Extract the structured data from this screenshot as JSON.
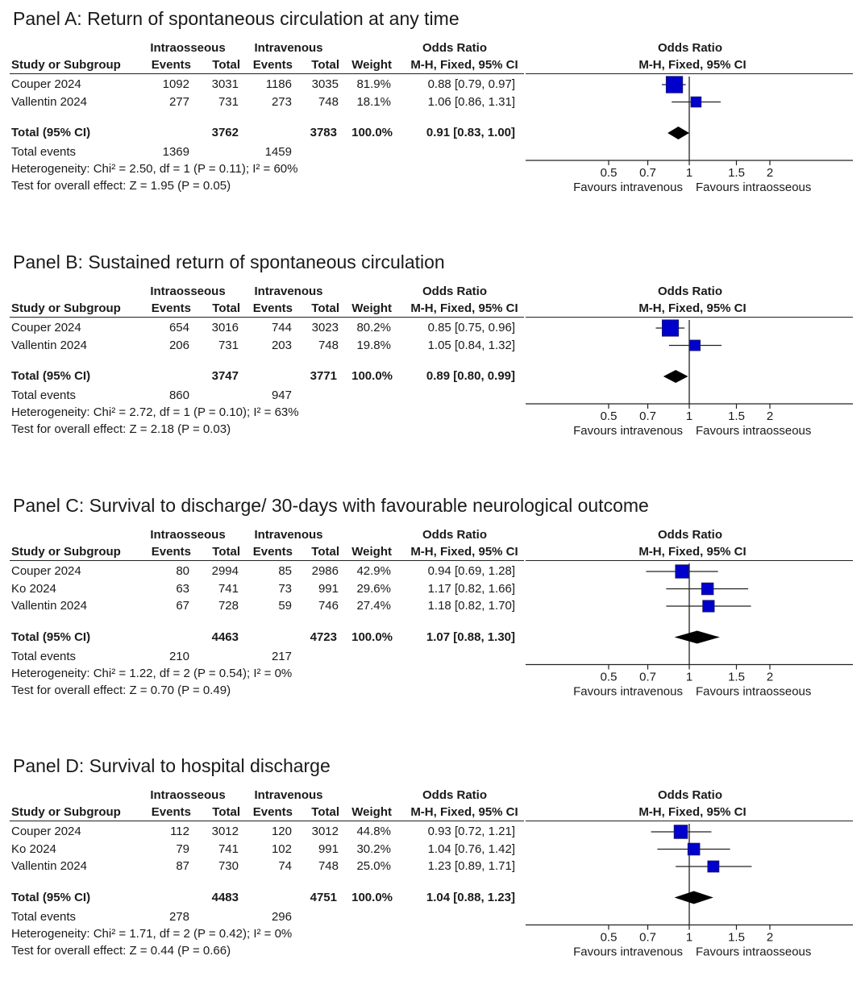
{
  "headers": {
    "group1": "Intraosseous",
    "group2": "Intravenous",
    "study": "Study or Subgroup",
    "events": "Events",
    "total": "Total",
    "weight": "Weight",
    "or_title": "Odds Ratio",
    "or_method": "M-H, Fixed, 95% CI",
    "plot_title": "Odds Ratio",
    "plot_method": "M-H, Fixed, 95% CI"
  },
  "axis": {
    "ticks": [
      0.5,
      0.7,
      1,
      1.5,
      2
    ],
    "tick_labels": [
      "0.5",
      "0.7",
      "1",
      "1.5",
      "2"
    ],
    "favours_left": "Favours intravenous",
    "favours_right": "Favours intraosseous"
  },
  "colors": {
    "square": "#0000cc",
    "diamond": "#000000"
  },
  "panels": [
    {
      "title": "Panel A: Return of spontaneous circulation at any time",
      "studies": [
        {
          "name": "Couper 2024",
          "io_events": "1092",
          "io_total": "3031",
          "iv_events": "1186",
          "iv_total": "3035",
          "weight": "81.9%",
          "ci_text": "0.88 [0.79, 0.97]"
        },
        {
          "name": "Vallentin 2024",
          "io_events": "277",
          "io_total": "731",
          "iv_events": "273",
          "iv_total": "748",
          "weight": "18.1%",
          "ci_text": "1.06 [0.86, 1.31]"
        }
      ],
      "total": {
        "label": "Total (95% CI)",
        "io_total": "3762",
        "iv_total": "3783",
        "weight": "100.0%",
        "ci_text": "0.91 [0.83, 1.00]"
      },
      "total_events": {
        "label": "Total events",
        "io": "1369",
        "iv": "1459"
      },
      "heterogeneity": "Heterogeneity: Chi² = 2.50, df = 1 (P = 0.11); I² = 60%",
      "overall": "Test for overall effect: Z = 1.95 (P = 0.05)"
    },
    {
      "title": "Panel B: Sustained return of spontaneous circulation",
      "studies": [
        {
          "name": "Couper 2024",
          "io_events": "654",
          "io_total": "3016",
          "iv_events": "744",
          "iv_total": "3023",
          "weight": "80.2%",
          "ci_text": "0.85 [0.75, 0.96]"
        },
        {
          "name": "Vallentin 2024",
          "io_events": "206",
          "io_total": "731",
          "iv_events": "203",
          "iv_total": "748",
          "weight": "19.8%",
          "ci_text": "1.05 [0.84, 1.32]"
        }
      ],
      "total": {
        "label": "Total (95% CI)",
        "io_total": "3747",
        "iv_total": "3771",
        "weight": "100.0%",
        "ci_text": "0.89 [0.80, 0.99]"
      },
      "total_events": {
        "label": "Total events",
        "io": "860",
        "iv": "947"
      },
      "heterogeneity": "Heterogeneity: Chi² = 2.72, df = 1 (P = 0.10); I² = 63%",
      "overall": "Test for overall effect: Z = 2.18 (P = 0.03)"
    },
    {
      "title": "Panel C: Survival to discharge/ 30-days with favourable neurological outcome",
      "studies": [
        {
          "name": "Couper 2024",
          "io_events": "80",
          "io_total": "2994",
          "iv_events": "85",
          "iv_total": "2986",
          "weight": "42.9%",
          "ci_text": "0.94 [0.69, 1.28]"
        },
        {
          "name": "Ko 2024",
          "io_events": "63",
          "io_total": "741",
          "iv_events": "73",
          "iv_total": "991",
          "weight": "29.6%",
          "ci_text": "1.17 [0.82, 1.66]"
        },
        {
          "name": "Vallentin 2024",
          "io_events": "67",
          "io_total": "728",
          "iv_events": "59",
          "iv_total": "746",
          "weight": "27.4%",
          "ci_text": "1.18 [0.82, 1.70]"
        }
      ],
      "total": {
        "label": "Total (95% CI)",
        "io_total": "4463",
        "iv_total": "4723",
        "weight": "100.0%",
        "ci_text": "1.07 [0.88, 1.30]"
      },
      "total_events": {
        "label": "Total events",
        "io": "210",
        "iv": "217"
      },
      "heterogeneity": "Heterogeneity: Chi² = 1.22, df = 2 (P = 0.54); I² = 0%",
      "overall": "Test for overall effect: Z = 0.70 (P = 0.49)"
    },
    {
      "title": "Panel D: Survival to hospital discharge",
      "studies": [
        {
          "name": "Couper 2024",
          "io_events": "112",
          "io_total": "3012",
          "iv_events": "120",
          "iv_total": "3012",
          "weight": "44.8%",
          "ci_text": "0.93 [0.72, 1.21]"
        },
        {
          "name": "Ko 2024",
          "io_events": "79",
          "io_total": "741",
          "iv_events": "102",
          "iv_total": "991",
          "weight": "30.2%",
          "ci_text": "1.04 [0.76, 1.42]"
        },
        {
          "name": "Vallentin 2024",
          "io_events": "87",
          "io_total": "730",
          "iv_events": "74",
          "iv_total": "748",
          "weight": "25.0%",
          "ci_text": "1.23 [0.89, 1.71]"
        }
      ],
      "total": {
        "label": "Total (95% CI)",
        "io_total": "4483",
        "iv_total": "4751",
        "weight": "100.0%",
        "ci_text": "1.04 [0.88, 1.23]"
      },
      "total_events": {
        "label": "Total events",
        "io": "278",
        "iv": "296"
      },
      "heterogeneity": "Heterogeneity: Chi² = 1.71, df = 2 (P = 0.42); I² = 0%",
      "overall": "Test for overall effect: Z = 0.44 (P = 0.66)"
    }
  ],
  "chart_data": [
    {
      "type": "forest",
      "title": "Panel A: Return of spontaneous circulation at any time",
      "xscale": "log",
      "xlim": [
        0.5,
        2
      ],
      "xticks": [
        0.5,
        0.7,
        1,
        1.5,
        2
      ],
      "series": [
        {
          "name": "Couper 2024",
          "or": 0.88,
          "lo": 0.79,
          "hi": 0.97,
          "weight": 81.9
        },
        {
          "name": "Vallentin 2024",
          "or": 1.06,
          "lo": 0.86,
          "hi": 1.31,
          "weight": 18.1
        }
      ],
      "pooled": {
        "or": 0.91,
        "lo": 0.83,
        "hi": 1.0
      }
    },
    {
      "type": "forest",
      "title": "Panel B: Sustained return of spontaneous circulation",
      "xscale": "log",
      "xlim": [
        0.5,
        2
      ],
      "xticks": [
        0.5,
        0.7,
        1,
        1.5,
        2
      ],
      "series": [
        {
          "name": "Couper 2024",
          "or": 0.85,
          "lo": 0.75,
          "hi": 0.96,
          "weight": 80.2
        },
        {
          "name": "Vallentin 2024",
          "or": 1.05,
          "lo": 0.84,
          "hi": 1.32,
          "weight": 19.8
        }
      ],
      "pooled": {
        "or": 0.89,
        "lo": 0.8,
        "hi": 0.99
      }
    },
    {
      "type": "forest",
      "title": "Panel C: Survival to discharge/ 30-days with favourable neurological outcome",
      "xscale": "log",
      "xlim": [
        0.5,
        2
      ],
      "xticks": [
        0.5,
        0.7,
        1,
        1.5,
        2
      ],
      "series": [
        {
          "name": "Couper 2024",
          "or": 0.94,
          "lo": 0.69,
          "hi": 1.28,
          "weight": 42.9
        },
        {
          "name": "Ko 2024",
          "or": 1.17,
          "lo": 0.82,
          "hi": 1.66,
          "weight": 29.6
        },
        {
          "name": "Vallentin 2024",
          "or": 1.18,
          "lo": 0.82,
          "hi": 1.7,
          "weight": 27.4
        }
      ],
      "pooled": {
        "or": 1.07,
        "lo": 0.88,
        "hi": 1.3
      }
    },
    {
      "type": "forest",
      "title": "Panel D: Survival to hospital discharge",
      "xscale": "log",
      "xlim": [
        0.5,
        2
      ],
      "xticks": [
        0.5,
        0.7,
        1,
        1.5,
        2
      ],
      "series": [
        {
          "name": "Couper 2024",
          "or": 0.93,
          "lo": 0.72,
          "hi": 1.21,
          "weight": 44.8
        },
        {
          "name": "Ko 2024",
          "or": 1.04,
          "lo": 0.76,
          "hi": 1.42,
          "weight": 30.2
        },
        {
          "name": "Vallentin 2024",
          "or": 1.23,
          "lo": 0.89,
          "hi": 1.71,
          "weight": 25.0
        }
      ],
      "pooled": {
        "or": 1.04,
        "lo": 0.88,
        "hi": 1.23
      }
    }
  ]
}
